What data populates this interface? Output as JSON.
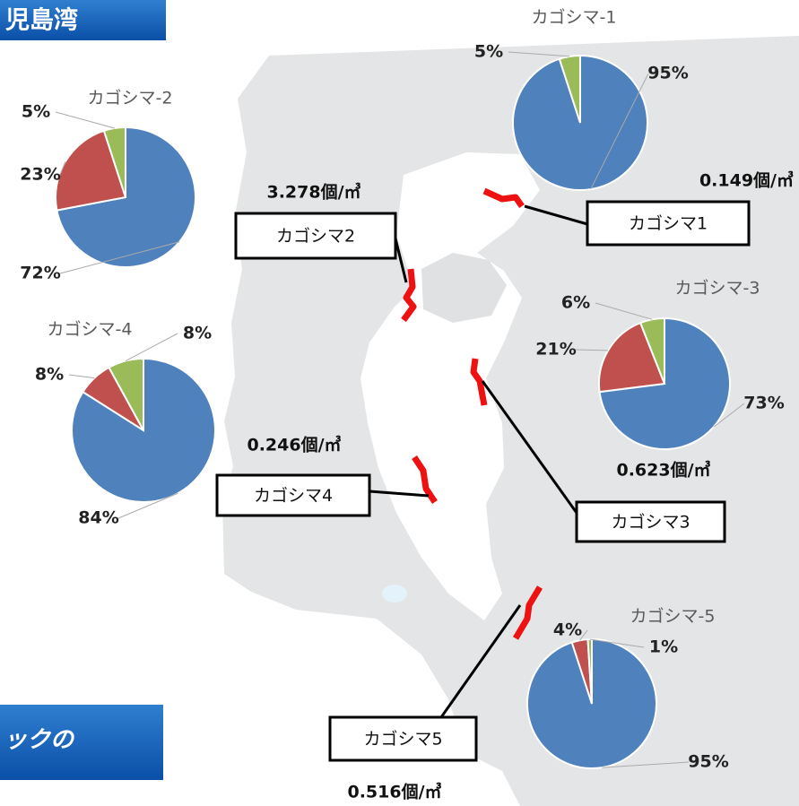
{
  "header": {
    "title": "児島湾",
    "footer_fragment": "ックの"
  },
  "stations": [
    {
      "label": "カゴシマ1",
      "density": "0.149個/㎥"
    },
    {
      "label": "カゴシマ2",
      "density": "3.278個/㎥"
    },
    {
      "label": "カゴシマ3",
      "density": "0.623個/㎥"
    },
    {
      "label": "カゴシマ4",
      "density": "0.246個/㎥"
    },
    {
      "label": "カゴシマ5",
      "density": "0.516個/㎥"
    }
  ],
  "chart_data": [
    {
      "type": "pie",
      "title": "カゴシマ-1",
      "values": [
        95,
        5
      ],
      "value_labels": [
        "95%",
        "5%"
      ],
      "colors": [
        "#4f81bd",
        "#9bbb59"
      ]
    },
    {
      "type": "pie",
      "title": "カゴシマ-2",
      "values": [
        72,
        23,
        5
      ],
      "value_labels": [
        "72%",
        "23%",
        "5%"
      ],
      "colors": [
        "#4f81bd",
        "#c0504d",
        "#9bbb59"
      ]
    },
    {
      "type": "pie",
      "title": "カゴシマ-3",
      "values": [
        73,
        21,
        6
      ],
      "value_labels": [
        "73%",
        "21%",
        "6%"
      ],
      "colors": [
        "#4f81bd",
        "#c0504d",
        "#9bbb59"
      ]
    },
    {
      "type": "pie",
      "title": "カゴシマ-4",
      "values": [
        84,
        8,
        8
      ],
      "value_labels": [
        "84%",
        "8%",
        "8%"
      ],
      "colors": [
        "#4f81bd",
        "#c0504d",
        "#9bbb59"
      ]
    },
    {
      "type": "pie",
      "title": "カゴシマ-5",
      "values": [
        95,
        4,
        1
      ],
      "value_labels": [
        "95%",
        "4%",
        "1%"
      ],
      "colors": [
        "#4f81bd",
        "#c0504d",
        "#9bbb59"
      ]
    }
  ]
}
